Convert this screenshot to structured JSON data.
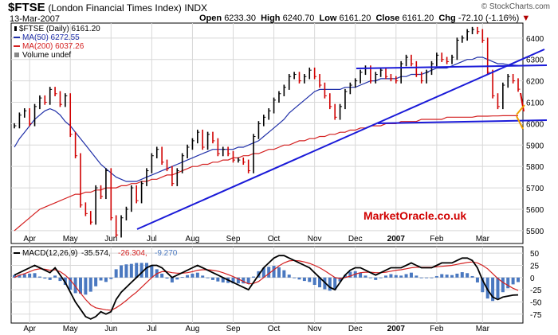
{
  "header": {
    "symbol": "$FTSE",
    "name": "(London Financial Times Index)",
    "exchange": "INDX",
    "date": "13-Mar-2007",
    "open_label": "Open",
    "open": "6233.30",
    "high_label": "High",
    "high": "6240.70",
    "low_label": "Low",
    "low": "6161.20",
    "close_label": "Close",
    "close": "6161.20",
    "chg_label": "Chg",
    "chg": "-72.10 (-1.16%)",
    "brand": "© StockCharts.com",
    "watermark": "MarketOracle.co.uk"
  },
  "legend": {
    "price": "$FTSE (Daily) 6161.20",
    "ma50": "MA(50) 6272.55",
    "ma200": "MA(200) 6037.26",
    "volume": "Volume undef",
    "macd_label": "MACD(12,26,9)",
    "macd": "-35.574,",
    "signal": "-26.304,",
    "hist": "-9.270"
  },
  "colors": {
    "ma50": "#1f2fa8",
    "ma200": "#d42020",
    "trendline": "#1a1ad8",
    "price": "#000000",
    "down": "#d00000",
    "macd_line": "#000000",
    "signal_line": "#d42020",
    "hist": "#4a78c0",
    "orange": "#f0a000"
  },
  "x_labels": [
    "Apr",
    "May",
    "Jun",
    "Jul",
    "Aug",
    "Sep",
    "Oct",
    "Nov",
    "Dec",
    "2007",
    "Feb",
    "Mar"
  ],
  "price_axis": [
    "6400",
    "6300",
    "6200",
    "6100",
    "6000",
    "5900",
    "5800",
    "5700",
    "5600",
    "5500"
  ],
  "macd_axis": [
    "50",
    "25",
    "0",
    "-25",
    "-50",
    "-75"
  ],
  "chart_data": [
    {
      "type": "line",
      "title": "$FTSE (London Financial Times Index)",
      "ylim": [
        5440,
        6470
      ],
      "months": [
        "Apr",
        "May",
        "Jun",
        "Jul",
        "Aug",
        "Sep",
        "Oct",
        "Nov",
        "Dec",
        "2007",
        "Feb",
        "Mar"
      ],
      "series": [
        {
          "name": "$FTSE (Daily) 6161.20",
          "values": [
            5990,
            6040,
            6060,
            6000,
            6080,
            6120,
            6100,
            6160,
            6140,
            6090,
            6130,
            5950,
            5850,
            5620,
            5580,
            5540,
            5700,
            5660,
            5780,
            5560,
            5480,
            5560,
            5600,
            5700,
            5640,
            5720,
            5780,
            5850,
            5880,
            5820,
            5790,
            5720,
            5780,
            5850,
            5890,
            5920,
            5960,
            5890,
            5950,
            5920,
            5860,
            5880,
            5860,
            5830,
            5830,
            5820,
            5780,
            5940,
            6000,
            6030,
            6060,
            6110,
            6140,
            6170,
            6220,
            6230,
            6200,
            6220,
            6250,
            6220,
            6180,
            6130,
            6080,
            6030,
            6080,
            6150,
            6180,
            6200,
            6240,
            6260,
            6200,
            6230,
            6250,
            6220,
            6210,
            6200,
            6280,
            6310,
            6280,
            6230,
            6200,
            6240,
            6280,
            6320,
            6300,
            6290,
            6310,
            6390,
            6400,
            6430,
            6440,
            6430,
            6390,
            6240,
            6130,
            6080,
            6180,
            6220,
            6200,
            6161
          ]
        },
        {
          "name": "MA(50) 6272.55",
          "values": [
            5890,
            5930,
            5960,
            5990,
            6020,
            6040,
            6060,
            6070,
            6060,
            6040,
            6010,
            5990,
            5960,
            5930,
            5900,
            5870,
            5840,
            5810,
            5790,
            5770,
            5750,
            5740,
            5730,
            5730,
            5730,
            5740,
            5750,
            5760,
            5770,
            5780,
            5790,
            5800,
            5810,
            5820,
            5830,
            5840,
            5850,
            5860,
            5870,
            5880,
            5880,
            5880,
            5880,
            5880,
            5890,
            5890,
            5900,
            5910,
            5920,
            5940,
            5960,
            5980,
            6000,
            6020,
            6050,
            6070,
            6090,
            6110,
            6130,
            6150,
            6160,
            6160,
            6160,
            6160,
            6160,
            6170,
            6170,
            6170,
            6180,
            6190,
            6200,
            6200,
            6210,
            6210,
            6210,
            6210,
            6220,
            6220,
            6230,
            6230,
            6230,
            6240,
            6250,
            6260,
            6260,
            6260,
            6270,
            6280,
            6290,
            6300,
            6300,
            6310,
            6310,
            6300,
            6290,
            6280,
            6280,
            6275,
            6274,
            6272
          ]
        },
        {
          "name": "MA(200) 6037.26",
          "values": [
            5500,
            5520,
            5540,
            5560,
            5580,
            5600,
            5610,
            5620,
            5630,
            5640,
            5650,
            5660,
            5670,
            5670,
            5680,
            5680,
            5690,
            5690,
            5700,
            5700,
            5700,
            5710,
            5710,
            5720,
            5720,
            5730,
            5730,
            5740,
            5740,
            5750,
            5760,
            5760,
            5770,
            5780,
            5790,
            5800,
            5800,
            5810,
            5810,
            5820,
            5820,
            5830,
            5830,
            5840,
            5840,
            5850,
            5850,
            5860,
            5860,
            5870,
            5880,
            5880,
            5890,
            5900,
            5900,
            5910,
            5920,
            5920,
            5930,
            5930,
            5940,
            5940,
            5950,
            5950,
            5960,
            5960,
            5970,
            5970,
            5980,
            5980,
            5990,
            5990,
            5990,
            6000,
            6000,
            6000,
            6010,
            6010,
            6010,
            6010,
            6020,
            6020,
            6020,
            6020,
            6020,
            6030,
            6030,
            6030,
            6030,
            6030,
            6030,
            6035,
            6035,
            6035,
            6036,
            6036,
            6037,
            6037,
            6037,
            6037
          ]
        }
      ]
    },
    {
      "type": "line",
      "title": "MACD(12,26,9)",
      "ylim": [
        -90,
        60
      ],
      "series": [
        {
          "name": "MACD",
          "values": [
            5,
            10,
            15,
            20,
            25,
            20,
            15,
            10,
            20,
            5,
            -10,
            -30,
            -50,
            -65,
            -80,
            -85,
            -80,
            -70,
            -75,
            -70,
            -45,
            -30,
            -20,
            -10,
            0,
            10,
            20,
            25,
            25,
            20,
            10,
            0,
            5,
            10,
            15,
            20,
            25,
            20,
            15,
            10,
            5,
            0,
            -5,
            -10,
            -15,
            -20,
            -25,
            -10,
            5,
            20,
            30,
            40,
            45,
            45,
            40,
            35,
            30,
            25,
            20,
            10,
            0,
            -10,
            -20,
            -25,
            -10,
            5,
            15,
            20,
            20,
            15,
            10,
            5,
            10,
            15,
            20,
            20,
            20,
            25,
            30,
            25,
            20,
            20,
            20,
            25,
            30,
            30,
            30,
            35,
            40,
            40,
            35,
            20,
            -5,
            -25,
            -40,
            -45,
            -40,
            -38,
            -36,
            -35.574
          ]
        },
        {
          "name": "Signal",
          "values": [
            0,
            5,
            8,
            12,
            16,
            18,
            17,
            15,
            16,
            12,
            5,
            -5,
            -18,
            -32,
            -45,
            -56,
            -62,
            -64,
            -66,
            -67,
            -62,
            -55,
            -47,
            -38,
            -30,
            -20,
            -10,
            0,
            8,
            12,
            12,
            10,
            9,
            9,
            10,
            12,
            15,
            16,
            16,
            15,
            13,
            10,
            6,
            2,
            -3,
            -8,
            -13,
            -12,
            -8,
            0,
            8,
            16,
            24,
            30,
            34,
            35,
            34,
            32,
            29,
            25,
            20,
            14,
            7,
            0,
            -2,
            0,
            3,
            7,
            10,
            11,
            11,
            10,
            10,
            11,
            13,
            15,
            16,
            18,
            20,
            21,
            21,
            21,
            21,
            22,
            23,
            24,
            25,
            27,
            29,
            31,
            32,
            30,
            25,
            18,
            8,
            -2,
            -10,
            -16,
            -22,
            -26.304
          ]
        },
        {
          "name": "Histogram",
          "values": [
            5,
            5,
            7,
            8,
            9,
            2,
            -2,
            -5,
            4,
            -7,
            -15,
            -25,
            -32,
            -33,
            -35,
            -29,
            -18,
            -6,
            -9,
            -3,
            17,
            25,
            27,
            28,
            30,
            30,
            30,
            25,
            17,
            8,
            -2,
            -10,
            -4,
            1,
            5,
            8,
            10,
            4,
            -1,
            -5,
            -8,
            -10,
            -11,
            -12,
            -12,
            -12,
            -12,
            2,
            13,
            20,
            22,
            24,
            21,
            15,
            6,
            0,
            -4,
            -7,
            -9,
            -15,
            -20,
            -24,
            -27,
            -25,
            -8,
            5,
            12,
            13,
            10,
            4,
            -1,
            -5,
            0,
            4,
            7,
            5,
            4,
            7,
            10,
            4,
            -1,
            -1,
            -1,
            3,
            7,
            6,
            5,
            8,
            11,
            9,
            3,
            -10,
            -30,
            -43,
            -48,
            -43,
            -30,
            -22,
            -14,
            -9.27
          ]
        }
      ]
    }
  ]
}
